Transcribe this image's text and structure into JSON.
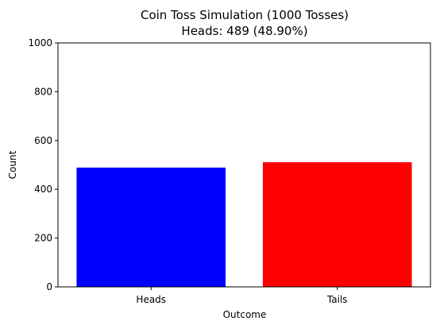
{
  "chart_data": {
    "type": "bar",
    "title": "Coin Toss Simulation (1000 Tosses)",
    "subtitle": "Heads: 489 (48.90%)",
    "xlabel": "Outcome",
    "ylabel": "Count",
    "categories": [
      "Heads",
      "Tails"
    ],
    "values": [
      489,
      511
    ],
    "colors": [
      "#0000ff",
      "#ff0000"
    ],
    "ylim": [
      0,
      1000
    ],
    "yticks": [
      0,
      200,
      400,
      600,
      800,
      1000
    ],
    "grid": false,
    "legend": "none"
  }
}
